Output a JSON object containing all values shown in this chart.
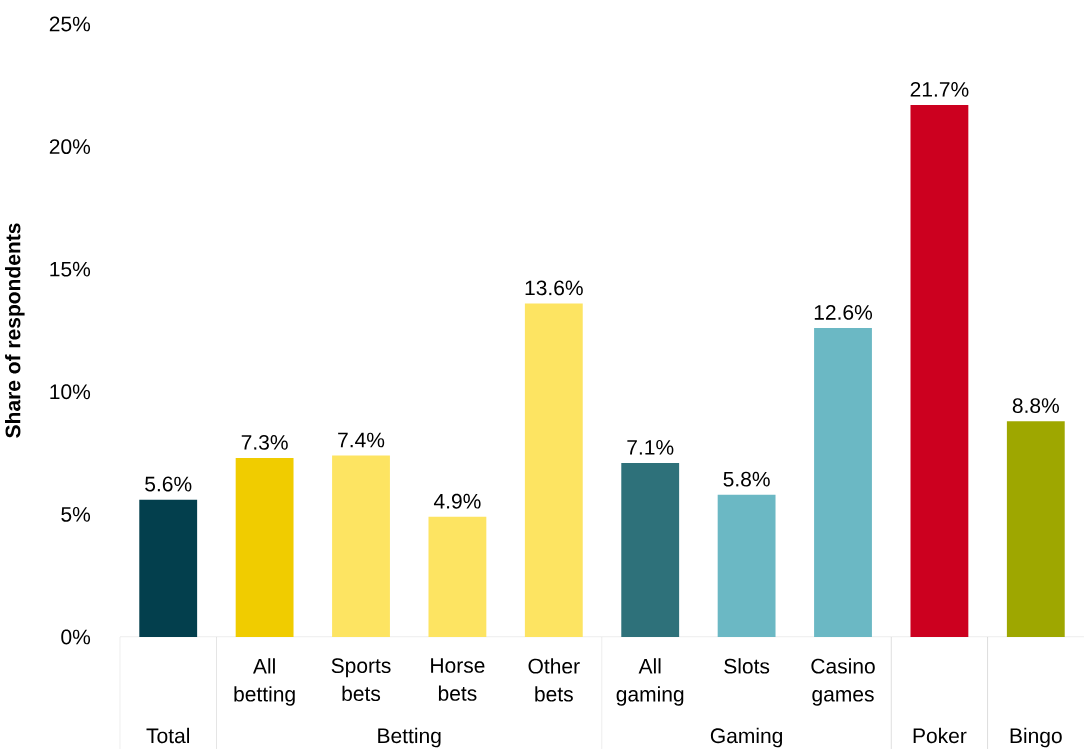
{
  "chart_data": {
    "type": "bar",
    "ylabel": "Share of respondents",
    "categories": [
      null,
      "All betting",
      "Sports bets",
      "Horse bets",
      "Other bets",
      "All gaming",
      "Slots",
      "Casino games",
      null,
      null
    ],
    "values": [
      5.6,
      7.3,
      7.4,
      4.9,
      13.6,
      7.1,
      5.8,
      12.6,
      21.7,
      8.8
    ],
    "value_labels": [
      "5.6%",
      "7.3%",
      "7.4%",
      "4.9%",
      "13.6%",
      "7.1%",
      "5.8%",
      "12.6%",
      "21.7%",
      "8.8%"
    ],
    "colors": [
      "#033f4d",
      "#f0cc00",
      "#fde462",
      "#fde462",
      "#fde462",
      "#2e717a",
      "#6bb8c4",
      "#6bb8c4",
      "#cc001f",
      "#9ea700"
    ],
    "annotations": [
      "Total",
      "Betting",
      "Gaming",
      "Poker",
      "Bingo"
    ],
    "ylim": [
      0,
      25
    ],
    "yticks": [
      {
        "value": 0,
        "label": "0%"
      },
      {
        "value": 5,
        "label": "5%"
      },
      {
        "value": 10,
        "label": "10%"
      },
      {
        "value": 15,
        "label": "15%"
      },
      {
        "value": 20,
        "label": "20%"
      },
      {
        "value": 25,
        "label": "25%"
      }
    ]
  }
}
